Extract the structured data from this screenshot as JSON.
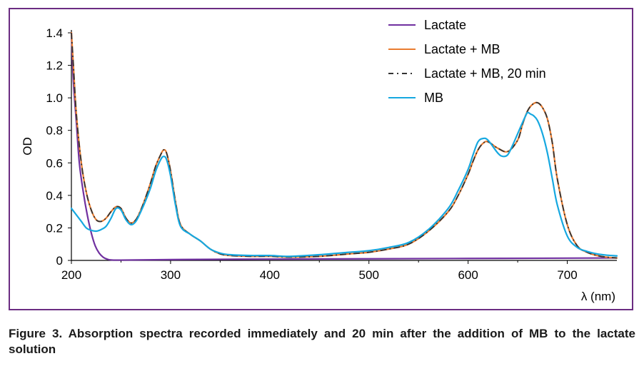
{
  "caption": "Figure 3. Absorption spectra recorded immediately and 20 min after the addition of MB to the lactate solution",
  "chart_data": {
    "type": "line",
    "xlabel": "λ (nm)",
    "ylabel": "OD",
    "xlim": [
      200,
      750
    ],
    "ylim": [
      0,
      1.4
    ],
    "x_ticks": [
      200,
      300,
      400,
      500,
      600,
      700
    ],
    "x_tick_labels": [
      "200",
      "300",
      "400",
      "500",
      "600",
      "700"
    ],
    "y_ticks": [
      0,
      0.2,
      0.4,
      0.6,
      0.8,
      1.0,
      1.2,
      1.4
    ],
    "y_tick_labels": [
      "0",
      "0.2",
      "0.4",
      "0.6",
      "0.8",
      "1.0",
      "1.2",
      "1.4"
    ],
    "grid": false,
    "legend_position": "top-right",
    "series": [
      {
        "name": "Lactate",
        "color": "#7030a0",
        "dash": "solid",
        "x": [
          200,
          202,
          205,
          208,
          212,
          216,
          220,
          224,
          228,
          232,
          236,
          240,
          250,
          300,
          400,
          500,
          600,
          700,
          750
        ],
        "y": [
          1.4,
          1.1,
          0.85,
          0.6,
          0.42,
          0.28,
          0.17,
          0.09,
          0.045,
          0.02,
          0.008,
          0.003,
          0.002,
          0.005,
          0.008,
          0.01,
          0.012,
          0.014,
          0.015
        ]
      },
      {
        "name": "Lactate + MB",
        "color": "#e97c30",
        "dash": "solid",
        "x": [
          200,
          202,
          205,
          210,
          215,
          220,
          225,
          230,
          235,
          240,
          245,
          250,
          255,
          260,
          265,
          270,
          275,
          280,
          285,
          290,
          293,
          296,
          300,
          305,
          310,
          320,
          330,
          340,
          350,
          360,
          380,
          400,
          420,
          450,
          480,
          500,
          520,
          540,
          560,
          580,
          590,
          600,
          605,
          610,
          615,
          620,
          630,
          640,
          650,
          655,
          660,
          665,
          670,
          675,
          680,
          685,
          690,
          700,
          710,
          720,
          730,
          740,
          750
        ],
        "y": [
          1.4,
          1.2,
          0.9,
          0.6,
          0.42,
          0.31,
          0.25,
          0.24,
          0.26,
          0.3,
          0.33,
          0.32,
          0.26,
          0.23,
          0.25,
          0.31,
          0.39,
          0.48,
          0.58,
          0.65,
          0.68,
          0.66,
          0.55,
          0.36,
          0.22,
          0.16,
          0.12,
          0.07,
          0.04,
          0.03,
          0.025,
          0.025,
          0.02,
          0.025,
          0.04,
          0.05,
          0.07,
          0.1,
          0.18,
          0.3,
          0.4,
          0.53,
          0.61,
          0.68,
          0.72,
          0.73,
          0.69,
          0.67,
          0.74,
          0.84,
          0.92,
          0.96,
          0.97,
          0.94,
          0.87,
          0.72,
          0.5,
          0.22,
          0.09,
          0.05,
          0.03,
          0.02,
          0.015
        ]
      },
      {
        "name": "Lactate + MB, 20 min",
        "color": "#333333",
        "dash": "dashdot",
        "x": [
          200,
          202,
          205,
          210,
          215,
          220,
          225,
          230,
          235,
          240,
          245,
          250,
          255,
          260,
          265,
          270,
          275,
          280,
          285,
          290,
          293,
          296,
          300,
          305,
          310,
          320,
          330,
          340,
          350,
          360,
          380,
          400,
          420,
          450,
          480,
          500,
          520,
          540,
          560,
          580,
          590,
          600,
          605,
          610,
          615,
          620,
          630,
          640,
          650,
          655,
          660,
          665,
          670,
          675,
          680,
          685,
          690,
          700,
          710,
          720,
          730,
          740,
          750
        ],
        "y": [
          1.4,
          1.2,
          0.9,
          0.6,
          0.42,
          0.31,
          0.25,
          0.24,
          0.26,
          0.3,
          0.33,
          0.32,
          0.26,
          0.23,
          0.25,
          0.31,
          0.39,
          0.48,
          0.58,
          0.65,
          0.68,
          0.66,
          0.55,
          0.36,
          0.22,
          0.16,
          0.12,
          0.07,
          0.04,
          0.03,
          0.025,
          0.025,
          0.02,
          0.025,
          0.04,
          0.05,
          0.07,
          0.1,
          0.18,
          0.3,
          0.4,
          0.53,
          0.61,
          0.68,
          0.72,
          0.73,
          0.69,
          0.67,
          0.74,
          0.84,
          0.92,
          0.96,
          0.97,
          0.94,
          0.87,
          0.72,
          0.5,
          0.22,
          0.09,
          0.05,
          0.03,
          0.02,
          0.015
        ]
      },
      {
        "name": "MB",
        "color": "#16a8e0",
        "dash": "solid",
        "x": [
          200,
          205,
          210,
          215,
          220,
          225,
          230,
          235,
          240,
          245,
          250,
          255,
          260,
          265,
          270,
          275,
          280,
          285,
          290,
          293,
          296,
          300,
          305,
          310,
          320,
          330,
          340,
          350,
          360,
          380,
          400,
          420,
          450,
          480,
          500,
          520,
          540,
          560,
          580,
          590,
          600,
          605,
          610,
          615,
          620,
          630,
          635,
          640,
          645,
          650,
          655,
          658,
          660,
          663,
          666,
          670,
          675,
          680,
          685,
          690,
          700,
          710,
          720,
          730,
          740,
          750
        ],
        "y": [
          0.32,
          0.28,
          0.24,
          0.2,
          0.185,
          0.18,
          0.19,
          0.21,
          0.26,
          0.32,
          0.31,
          0.25,
          0.22,
          0.24,
          0.3,
          0.37,
          0.45,
          0.55,
          0.62,
          0.64,
          0.62,
          0.52,
          0.34,
          0.21,
          0.16,
          0.12,
          0.07,
          0.045,
          0.035,
          0.03,
          0.03,
          0.025,
          0.035,
          0.05,
          0.06,
          0.08,
          0.11,
          0.19,
          0.32,
          0.43,
          0.56,
          0.65,
          0.73,
          0.75,
          0.74,
          0.66,
          0.64,
          0.65,
          0.71,
          0.78,
          0.85,
          0.89,
          0.91,
          0.9,
          0.89,
          0.86,
          0.78,
          0.66,
          0.5,
          0.34,
          0.15,
          0.08,
          0.055,
          0.04,
          0.032,
          0.028
        ]
      }
    ]
  }
}
